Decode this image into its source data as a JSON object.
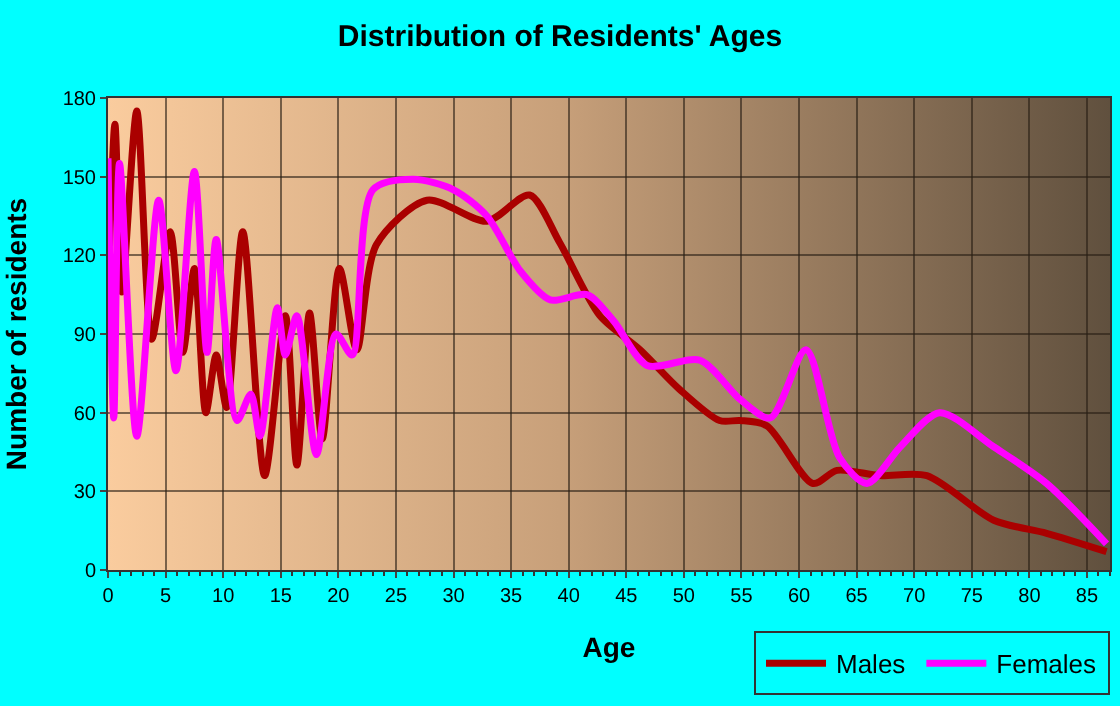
{
  "chart_data": {
    "type": "line",
    "title": "Distribution of Residents' Ages",
    "xlabel": "Age",
    "ylabel": "Number of residents",
    "xlim": [
      0,
      87
    ],
    "xticks": [
      0,
      5,
      10,
      15,
      20,
      25,
      30,
      35,
      40,
      45,
      50,
      55,
      60,
      65,
      70,
      75,
      80,
      85
    ],
    "ylim": [
      0,
      180
    ],
    "yticks": [
      0,
      30,
      60,
      90,
      120,
      150,
      180
    ],
    "grid": true,
    "legend": "bottom right",
    "line_style": "solid",
    "marker": "none",
    "series": [
      {
        "name": "Males",
        "color": "#aa0000",
        "x": [
          0,
          0.6,
          1.2,
          2.5,
          3.8,
          5.4,
          6.5,
          7.5,
          8.5,
          9.4,
          10.3,
          11.7,
          13.6,
          15.4,
          16.4,
          17.5,
          18.6,
          20.1,
          21.6,
          23.3,
          27.7,
          32.9,
          36.6,
          39.2,
          42.7,
          46.2,
          49.6,
          53.1,
          54.9,
          57.2,
          61.2,
          63.3,
          67,
          71.1,
          76.9,
          81.5,
          86.7
        ],
        "values": [
          102,
          170,
          106,
          175,
          88,
          129,
          83,
          115,
          60,
          82,
          62,
          129,
          36,
          97,
          40,
          98,
          50,
          115,
          84,
          124,
          141,
          133,
          143,
          125,
          97,
          84,
          69,
          57,
          57,
          55,
          33,
          38,
          36,
          36,
          19,
          14,
          7
        ]
      },
      {
        "name": "Females",
        "color": "#ff00ff",
        "x": [
          0,
          0.5,
          1,
          2.5,
          4.4,
          5.9,
          7.5,
          8.6,
          9.4,
          11.2,
          12.4,
          13.2,
          14.7,
          15.4,
          16.4,
          18.1,
          19.8,
          21.2,
          23,
          26.5,
          30,
          32.9,
          35.8,
          38.4,
          41.6,
          43.9,
          46.8,
          51.4,
          54.9,
          57.5,
          60.6,
          63.5,
          65.9,
          68.8,
          72.2,
          76.9,
          81.5,
          86.7
        ],
        "values": [
          157,
          58,
          155,
          51,
          141,
          76,
          152,
          83,
          126,
          57,
          67,
          51,
          100,
          82,
          97,
          44,
          90,
          82,
          145,
          149,
          145,
          135,
          114,
          103,
          105,
          95,
          78,
          80,
          65,
          58,
          84,
          43,
          33,
          47,
          60,
          47,
          33,
          10
        ]
      }
    ]
  }
}
